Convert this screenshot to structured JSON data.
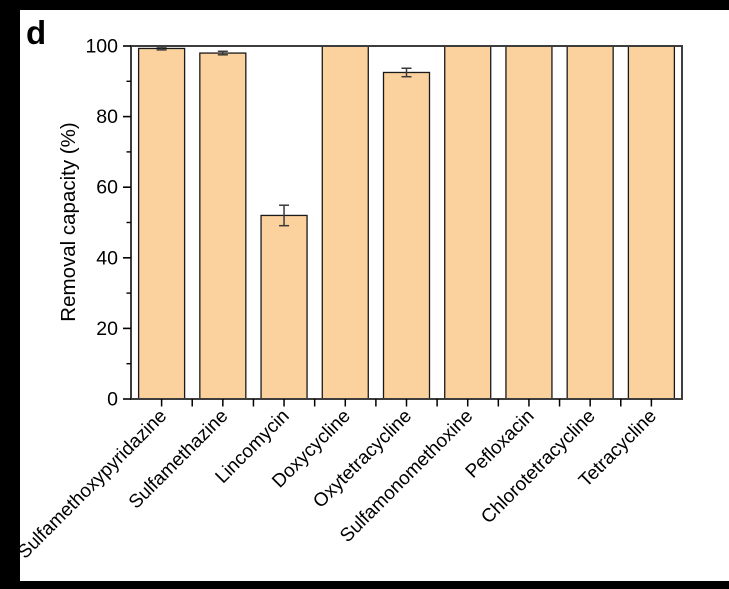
{
  "figure": {
    "panel_label": "d"
  },
  "chart_data": {
    "type": "bar",
    "title": "",
    "xlabel": "",
    "ylabel": "Removal capacity (%)",
    "categories": [
      "Sulfamethoxypyridazine",
      "Sulfamethazine",
      "Lincomycin",
      "Doxycycline",
      "Oxytetracycline",
      "Sulfamonomethoxine",
      "Pefloxacin",
      "Chlorotetracycline",
      "Tetracycline"
    ],
    "values": [
      99.3,
      98.0,
      52.0,
      100,
      92.5,
      100,
      100,
      100,
      100
    ],
    "errors": [
      0.4,
      0.5,
      2.9,
      0,
      1.2,
      0,
      0,
      0,
      0
    ],
    "ylim": [
      0,
      100
    ],
    "yticks": [
      0,
      20,
      40,
      60,
      80,
      100
    ],
    "yticks_minor": [
      10,
      30,
      50,
      70,
      90
    ],
    "label_rotation_deg": 45,
    "legend": "none",
    "grid": "off",
    "bar_color": "#FBD19D",
    "bar_border_color": "#1a1a1a",
    "error_bar_color": "#3a3a3a",
    "frame_color": "#3d3d3d",
    "text_color": "#000000"
  }
}
